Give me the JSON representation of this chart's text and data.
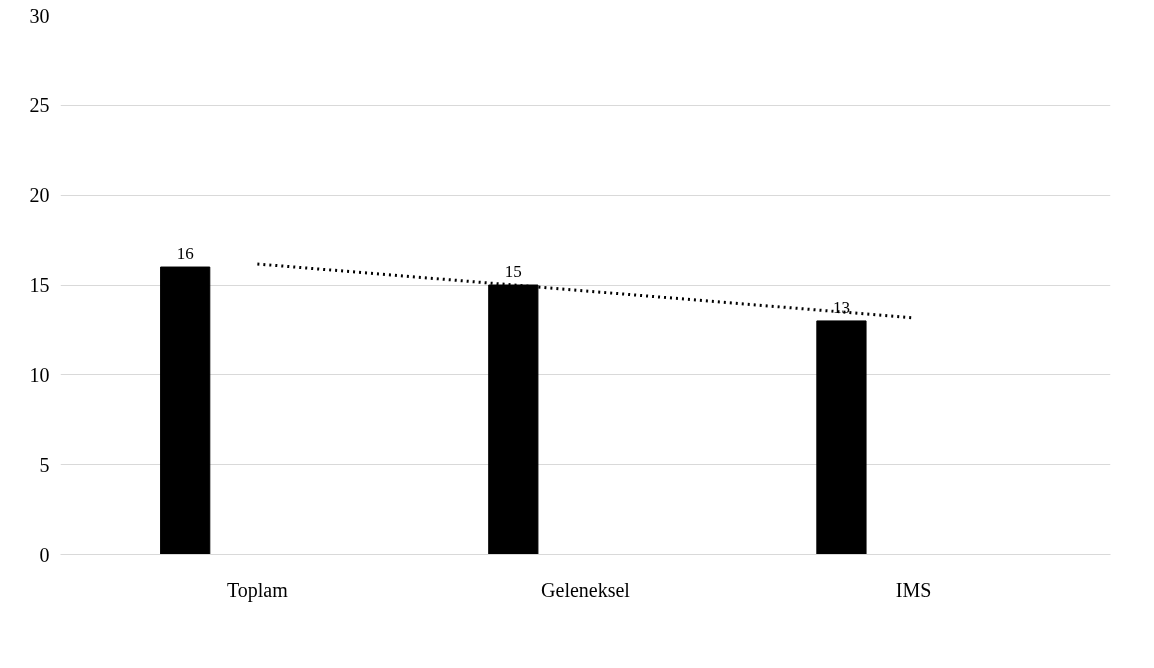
{
  "chart_data": {
    "type": "bar",
    "categories": [
      "Toplam",
      "Geleneksel",
      "IMS"
    ],
    "series": [
      {
        "color": "#000000",
        "values": [
          16,
          15,
          13
        ],
        "value_labels": [
          "16",
          "15",
          "13"
        ]
      },
      {
        "type": "line",
        "color": "#000000",
        "line_style": "dotted",
        "values": [
          16.17,
          14.67,
          13.17
        ]
      }
    ],
    "ylim": [
      0,
      30
    ],
    "yticks": [
      0,
      5,
      10,
      15,
      20,
      25,
      30
    ],
    "grid": "y"
  }
}
